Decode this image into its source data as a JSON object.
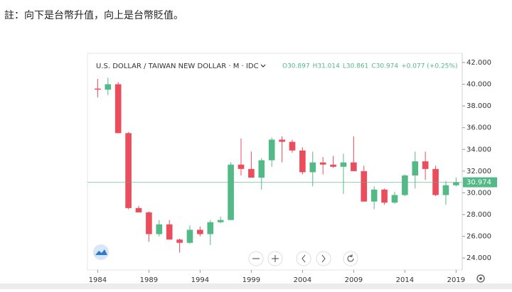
{
  "note": "註：向下是台幣升值，向上是台幣貶值。",
  "chart_data": {
    "type": "candlestick",
    "title": "U.S. DOLLAR / TAIWAN NEW DOLLAR · M · IDC",
    "ohlc_legend": [
      "O30.897",
      "H31.014",
      "L30.861",
      "C30.974",
      "+0.077 (+0.25%)"
    ],
    "x": [
      1984,
      1985,
      1986,
      1987,
      1988,
      1989,
      1990,
      1991,
      1992,
      1993,
      1994,
      1995,
      1996,
      1997,
      1998,
      1999,
      2000,
      2001,
      2002,
      2003,
      2004,
      2005,
      2006,
      2007,
      2008,
      2009,
      2010,
      2011,
      2012,
      2013,
      2014,
      2015,
      2016,
      2017,
      2018,
      2019
    ],
    "open": [
      39.6,
      39.5,
      40.0,
      35.5,
      28.6,
      28.2,
      26.2,
      27.1,
      25.7,
      25.4,
      26.6,
      26.2,
      27.3,
      27.5,
      32.6,
      32.2,
      31.4,
      33.0,
      34.9,
      34.7,
      33.9,
      31.9,
      32.8,
      32.6,
      32.4,
      32.8,
      32.0,
      29.2,
      30.3,
      29.1,
      29.8,
      31.6,
      32.9,
      32.2,
      29.8,
      30.7
    ],
    "high": [
      40.5,
      40.6,
      40.2,
      35.6,
      28.8,
      28.3,
      27.5,
      27.5,
      25.8,
      27.0,
      26.9,
      27.5,
      27.8,
      32.8,
      35.0,
      33.8,
      33.2,
      35.1,
      35.2,
      34.9,
      34.2,
      33.8,
      33.3,
      33.4,
      33.6,
      35.2,
      32.5,
      30.6,
      30.4,
      30.1,
      31.7,
      33.8,
      33.8,
      32.5,
      31.1,
      31.4
    ],
    "low": [
      38.8,
      39.0,
      35.5,
      28.5,
      28.2,
      25.5,
      26.0,
      25.7,
      24.5,
      25.3,
      26.0,
      25.2,
      27.2,
      27.5,
      31.6,
      31.4,
      30.3,
      32.4,
      32.8,
      33.7,
      31.7,
      30.6,
      31.7,
      32.3,
      29.9,
      32.0,
      29.2,
      28.5,
      28.9,
      29.0,
      29.7,
      30.4,
      31.2,
      29.7,
      28.9,
      30.6
    ],
    "close": [
      39.5,
      40.0,
      35.5,
      28.6,
      28.2,
      26.2,
      27.1,
      25.7,
      25.4,
      26.6,
      26.2,
      27.3,
      27.5,
      32.6,
      32.2,
      31.4,
      33.0,
      34.9,
      34.7,
      33.9,
      31.9,
      32.8,
      32.6,
      32.4,
      32.8,
      32.0,
      29.2,
      30.3,
      29.1,
      29.8,
      31.6,
      32.9,
      32.2,
      29.8,
      30.7,
      30.974
    ],
    "up_color": "#53b987",
    "down_color": "#eb4d5c",
    "last_price": 30.974,
    "last_price_color": "#53b987",
    "xlim": [
      1983,
      2019.6
    ],
    "xticks": [
      1984,
      1989,
      1994,
      1999,
      2004,
      2009,
      2014,
      2019
    ],
    "ylim": [
      22.9,
      42.85
    ],
    "yticks": [
      {
        "value": 24,
        "label": "24.000"
      },
      {
        "value": 26,
        "label": "26.000"
      },
      {
        "value": 28,
        "label": "28.000"
      },
      {
        "value": 30,
        "label": "30.000"
      },
      {
        "value": 32,
        "label": "32.000"
      },
      {
        "value": 34,
        "label": "34.000"
      },
      {
        "value": 36,
        "label": "36.000"
      },
      {
        "value": 38,
        "label": "38.000"
      },
      {
        "value": 40,
        "label": "40.000"
      },
      {
        "value": 42,
        "label": "42.000"
      }
    ]
  }
}
